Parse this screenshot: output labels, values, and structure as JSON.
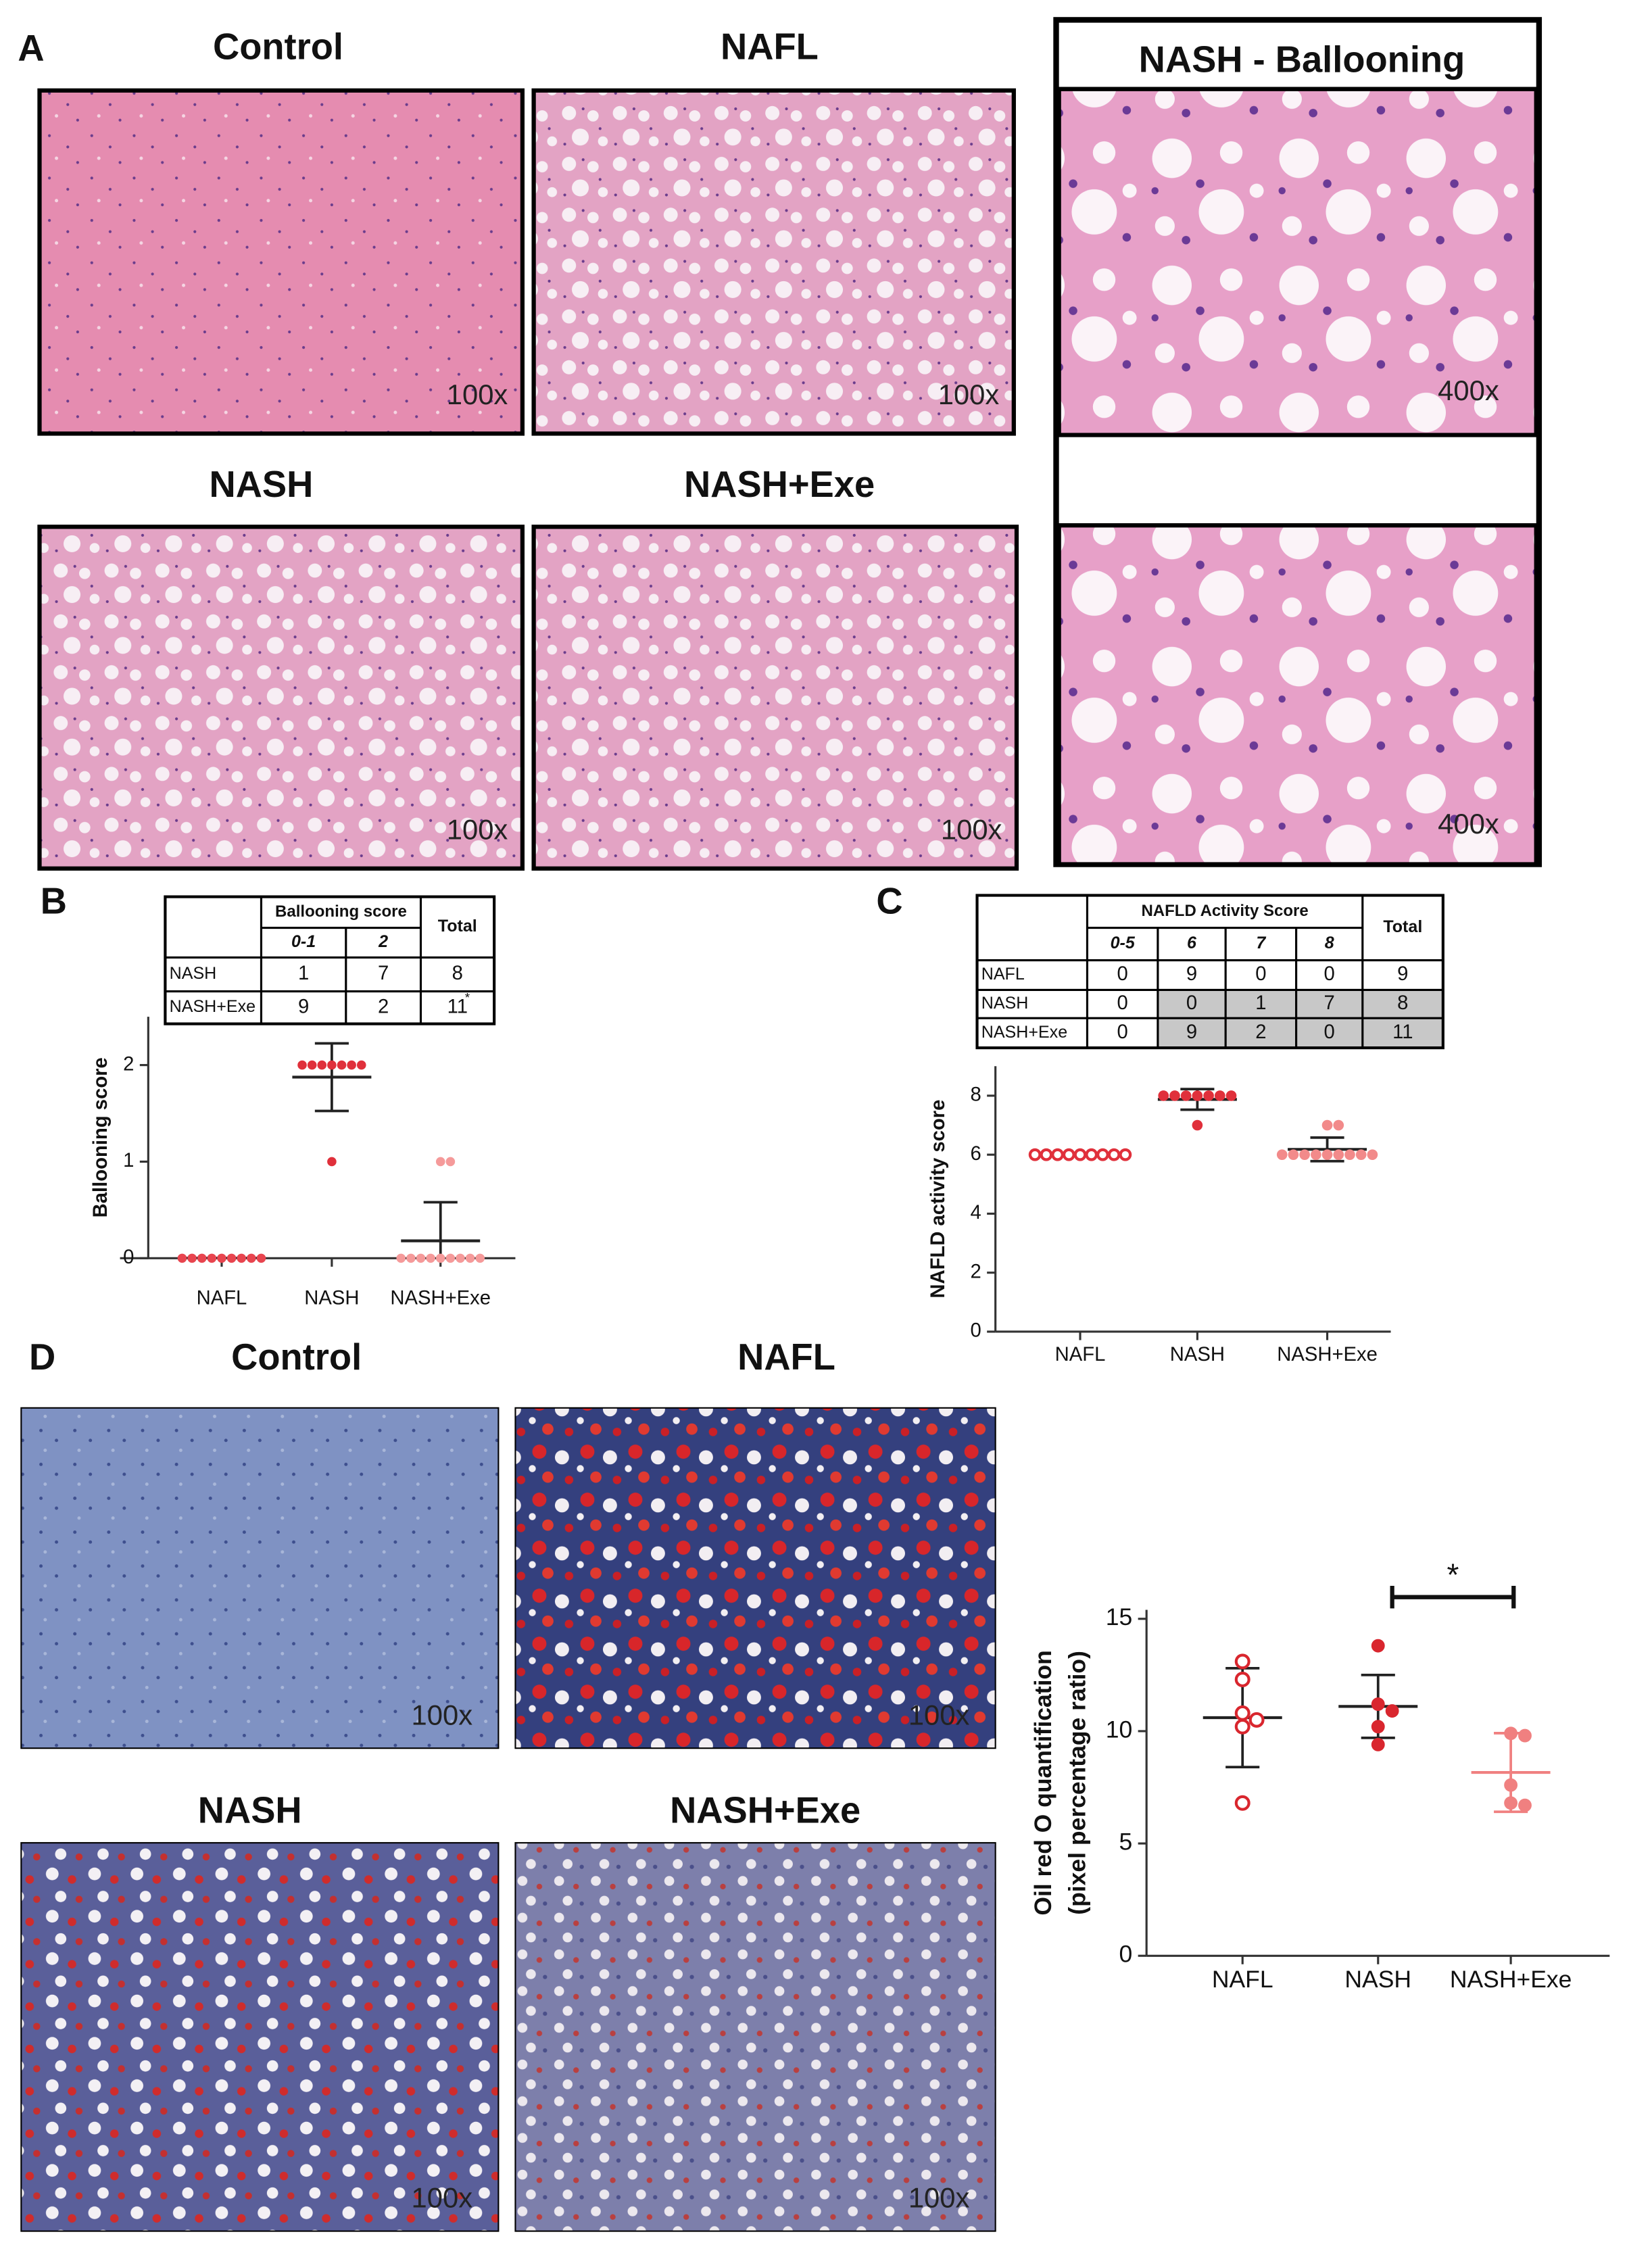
{
  "panel_labels": [
    "A",
    "B",
    "C",
    "D"
  ],
  "he_images": [
    {
      "title": "Control",
      "magnification": "100x"
    },
    {
      "title": "NAFL",
      "magnification": "100x"
    },
    {
      "title": "NASH",
      "magnification": "100x"
    },
    {
      "title": "NASH+Exe",
      "magnification": "100x"
    }
  ],
  "ballooning_images": {
    "title": "NASH - Ballooning",
    "magnifications": [
      "400x",
      "400x"
    ]
  },
  "oil_images": [
    {
      "title": "Control",
      "magnification": "100x"
    },
    {
      "title": "NAFL",
      "magnification": "100x"
    },
    {
      "title": "NASH",
      "magnification": "100x"
    },
    {
      "title": "NASH+Exe",
      "magnification": "100x"
    }
  ],
  "ballooning_table": {
    "header": "Ballooning score",
    "total": "Total",
    "columns": [
      "0-1",
      "2"
    ],
    "rows": [
      [
        "NASH",
        "1",
        "7",
        "8"
      ],
      [
        "NASH+Exe",
        "9",
        "2",
        "11"
      ]
    ],
    "footnote_mark": "*"
  },
  "nas_table": {
    "header": "NAFLD Activity Score",
    "total": "Total",
    "columns": [
      "0-5",
      "6",
      "7",
      "8"
    ],
    "rows": [
      [
        "NAFL",
        "0",
        "9",
        "0",
        "0",
        "9"
      ],
      [
        "NASH",
        "0",
        "0",
        "1",
        "7",
        "8"
      ],
      [
        "NASH+Exe",
        "0",
        "9",
        "2",
        "0",
        "11"
      ]
    ]
  },
  "chart_data": [
    {
      "type": "dot",
      "y_label": "Ballooning score",
      "categories": [
        "NAFL",
        "NASH",
        "NASH+Exe"
      ],
      "colors": [
        "#e8454f",
        "#e0303b",
        "#f59a9a"
      ],
      "open": [
        false,
        false,
        false
      ],
      "error_colors": [
        "#222222",
        "#222222",
        "#222222"
      ],
      "values": [
        [
          0,
          0,
          0,
          0,
          0,
          0,
          0,
          0,
          0
        ],
        [
          2,
          2,
          2,
          2,
          2,
          2,
          2,
          1
        ],
        [
          0,
          0,
          0,
          0,
          0,
          0,
          0,
          0,
          0,
          1,
          1
        ]
      ],
      "means": [
        0,
        1.875,
        0.18
      ],
      "sds": [
        0,
        0.35,
        0.4
      ],
      "ylim": [
        0,
        2.5
      ],
      "yticks": [
        0,
        1,
        2
      ]
    },
    {
      "type": "dot",
      "y_label": "NAFLD activity score",
      "categories": [
        "NAFL",
        "NASH",
        "NASH+Exe"
      ],
      "colors": [
        "#e0303b",
        "#e0303b",
        "#f28a8a"
      ],
      "open": [
        true,
        false,
        false
      ],
      "error_colors": [
        "#222222",
        "#222222",
        "#222222"
      ],
      "values": [
        [
          6,
          6,
          6,
          6,
          6,
          6,
          6,
          6,
          6
        ],
        [
          8,
          8,
          8,
          8,
          8,
          8,
          8,
          7
        ],
        [
          6,
          6,
          6,
          6,
          6,
          6,
          6,
          6,
          6,
          7,
          7
        ]
      ],
      "means": [
        6,
        7.875,
        6.18
      ],
      "sds": [
        0,
        0.35,
        0.4
      ],
      "ylim": [
        0,
        9
      ],
      "yticks": [
        0,
        2,
        4,
        6,
        8
      ]
    },
    {
      "type": "dot",
      "y_label": [
        "Oil red O quantification",
        "(pixel percentage ratio)"
      ],
      "categories": [
        "NAFL",
        "NASH",
        "NASH+Exe"
      ],
      "colors": [
        "#d9262e",
        "#d9262e",
        "#f08080"
      ],
      "open": [
        true,
        false,
        false
      ],
      "error_colors": [
        "#222222",
        "#222222",
        "#f08080"
      ],
      "values": [
        [
          13.1,
          12.3,
          10.8,
          10.5,
          10.2,
          6.8
        ],
        [
          13.8,
          11.2,
          10.9,
          10.2,
          9.4
        ],
        [
          9.9,
          9.8,
          7.6,
          6.8,
          6.7
        ]
      ],
      "means": [
        10.6,
        11.1,
        8.16
      ],
      "sds": [
        2.2,
        1.4,
        1.75
      ],
      "ylim": [
        0,
        15.4
      ],
      "yticks": [
        0,
        5,
        10,
        15
      ],
      "annotation": "*"
    }
  ]
}
